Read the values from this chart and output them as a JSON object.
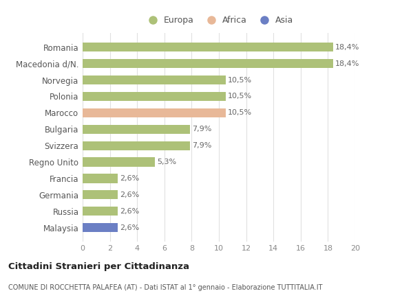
{
  "categories": [
    "Romania",
    "Macedonia d/N.",
    "Norvegia",
    "Polonia",
    "Marocco",
    "Bulgaria",
    "Svizzera",
    "Regno Unito",
    "Francia",
    "Germania",
    "Russia",
    "Malaysia"
  ],
  "values": [
    18.4,
    18.4,
    10.5,
    10.5,
    10.5,
    7.9,
    7.9,
    5.3,
    2.6,
    2.6,
    2.6,
    2.6
  ],
  "labels": [
    "18,4%",
    "18,4%",
    "10,5%",
    "10,5%",
    "10,5%",
    "7,9%",
    "7,9%",
    "5,3%",
    "2,6%",
    "2,6%",
    "2,6%",
    "2,6%"
  ],
  "colors": [
    "#adc178",
    "#adc178",
    "#adc178",
    "#adc178",
    "#e8b898",
    "#adc178",
    "#adc178",
    "#adc178",
    "#adc178",
    "#adc178",
    "#adc178",
    "#6b7fc4"
  ],
  "legend_labels": [
    "Europa",
    "Africa",
    "Asia"
  ],
  "legend_colors": [
    "#adc178",
    "#e8b898",
    "#6b7fc4"
  ],
  "xlim": [
    0,
    20
  ],
  "xticks": [
    0,
    2,
    4,
    6,
    8,
    10,
    12,
    14,
    16,
    18,
    20
  ],
  "title": "Cittadini Stranieri per Cittadinanza",
  "subtitle": "COMUNE DI ROCCHETTA PALAFEA (AT) - Dati ISTAT al 1° gennaio - Elaborazione TUTTITALIA.IT",
  "bg_color": "#ffffff",
  "grid_color": "#e0e0e0",
  "bar_height": 0.55,
  "label_fontsize": 8,
  "ytick_fontsize": 8.5,
  "xtick_fontsize": 8
}
